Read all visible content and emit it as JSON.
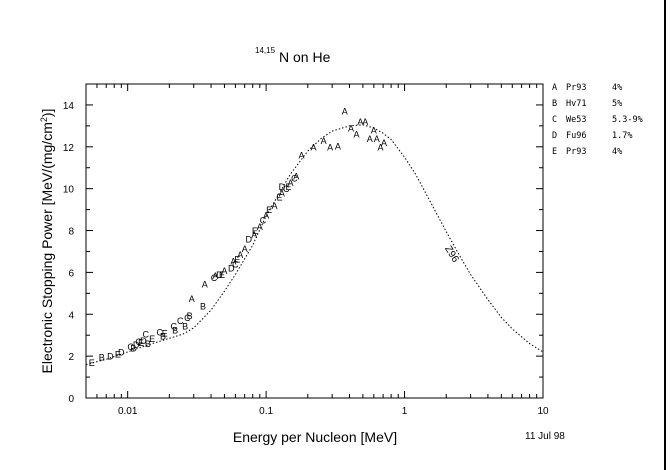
{
  "chart_data": {
    "type": "scatter",
    "title_superscript": "14,15",
    "title_main": "N on He",
    "xlabel": "Energy per Nucleon [MeV]",
    "ylabel_prefix": "Electronic Stopping Power [MeV/(mg/cm",
    "ylabel_sup": "2",
    "ylabel_suffix": ")]",
    "date": "11 Jul 98",
    "x_scale": "log",
    "xlim": [
      0.005,
      10
    ],
    "ylim": [
      0,
      15
    ],
    "x_ticks": [
      {
        "value": 0.01,
        "label": "0.01"
      },
      {
        "value": 0.1,
        "label": "0.1"
      },
      {
        "value": 1,
        "label": "1"
      },
      {
        "value": 10,
        "label": "10"
      }
    ],
    "y_ticks": [
      0,
      2,
      4,
      6,
      8,
      10,
      12,
      14
    ],
    "legend": [
      {
        "letter": "A",
        "ref": "Pr93",
        "uncertainty": "4%"
      },
      {
        "letter": "B",
        "ref": "Hv71",
        "uncertainty": "5%"
      },
      {
        "letter": "C",
        "ref": "We53",
        "uncertainty": "5.3-9%"
      },
      {
        "letter": "D",
        "ref": "Fu96",
        "uncertainty": "1.7%"
      },
      {
        "letter": "E",
        "ref": "Pr93",
        "uncertainty": "4%"
      }
    ],
    "legend_placement": "outside right, top",
    "curve_label": "Z96",
    "curve_style": "dotted",
    "curve": {
      "x": [
        0.005,
        0.007,
        0.01,
        0.015,
        0.02,
        0.025,
        0.03,
        0.04,
        0.05,
        0.06,
        0.08,
        0.1,
        0.12,
        0.15,
        0.2,
        0.25,
        0.3,
        0.4,
        0.5,
        0.6,
        0.7,
        0.8,
        1.0,
        1.2,
        1.5,
        2.0,
        2.5,
        3.0,
        4.0,
        5.0,
        6.0,
        8.0,
        10.0
      ],
      "y": [
        1.6,
        1.85,
        2.2,
        2.6,
        2.85,
        3.05,
        3.35,
        4.2,
        5.1,
        5.9,
        7.3,
        8.7,
        9.6,
        10.7,
        11.8,
        12.4,
        12.75,
        13.0,
        13.05,
        12.9,
        12.65,
        12.35,
        11.5,
        10.7,
        9.5,
        7.95,
        6.8,
        5.9,
        4.7,
        3.85,
        3.3,
        2.6,
        2.2
      ]
    },
    "series": [
      {
        "letter": "A",
        "points": [
          [
            0.029,
            4.75
          ],
          [
            0.036,
            5.45
          ],
          [
            0.043,
            5.85
          ],
          [
            0.05,
            6.1
          ],
          [
            0.058,
            6.55
          ],
          [
            0.065,
            6.85
          ],
          [
            0.07,
            7.15
          ],
          [
            0.082,
            7.8
          ],
          [
            0.09,
            8.2
          ],
          [
            0.1,
            8.75
          ],
          [
            0.115,
            9.2
          ],
          [
            0.13,
            9.8
          ],
          [
            0.15,
            10.3
          ],
          [
            0.165,
            10.6
          ],
          [
            0.18,
            11.6
          ],
          [
            0.22,
            12.0
          ],
          [
            0.26,
            12.3
          ],
          [
            0.29,
            12.0
          ],
          [
            0.33,
            12.05
          ],
          [
            0.37,
            13.7
          ],
          [
            0.41,
            12.9
          ],
          [
            0.45,
            12.6
          ],
          [
            0.48,
            13.2
          ],
          [
            0.52,
            13.2
          ],
          [
            0.56,
            12.4
          ],
          [
            0.6,
            12.8
          ],
          [
            0.63,
            12.4
          ],
          [
            0.67,
            12.0
          ],
          [
            0.71,
            12.2
          ]
        ]
      },
      {
        "letter": "B",
        "points": [
          [
            0.0065,
            1.95
          ],
          [
            0.011,
            2.4
          ],
          [
            0.014,
            2.6
          ],
          [
            0.018,
            2.95
          ],
          [
            0.022,
            3.25
          ],
          [
            0.026,
            3.45
          ],
          [
            0.028,
            3.95
          ],
          [
            0.035,
            4.4
          ]
        ]
      },
      {
        "letter": "C",
        "points": [
          [
            0.0105,
            2.45
          ],
          [
            0.012,
            2.7
          ],
          [
            0.0135,
            3.05
          ],
          [
            0.017,
            3.15
          ],
          [
            0.0215,
            3.45
          ],
          [
            0.024,
            3.7
          ],
          [
            0.027,
            3.85
          ],
          [
            0.042,
            5.75
          ],
          [
            0.06,
            6.4
          ],
          [
            0.095,
            8.5
          ],
          [
            0.14,
            10.0
          ],
          [
            0.16,
            10.5
          ]
        ]
      },
      {
        "letter": "D",
        "points": [
          [
            0.0075,
            2.0
          ],
          [
            0.009,
            2.2
          ],
          [
            0.0115,
            2.55
          ],
          [
            0.013,
            2.75
          ],
          [
            0.046,
            5.9
          ],
          [
            0.056,
            6.2
          ],
          [
            0.075,
            7.6
          ],
          [
            0.13,
            10.1
          ]
        ]
      },
      {
        "letter": "E",
        "points": [
          [
            0.0055,
            1.7
          ],
          [
            0.0085,
            2.1
          ],
          [
            0.0125,
            2.65
          ],
          [
            0.015,
            2.85
          ],
          [
            0.0185,
            3.1
          ],
          [
            0.048,
            5.9
          ],
          [
            0.062,
            6.65
          ],
          [
            0.083,
            8.0
          ],
          [
            0.105,
            9.0
          ],
          [
            0.125,
            9.6
          ],
          [
            0.145,
            10.1
          ]
        ]
      }
    ]
  }
}
